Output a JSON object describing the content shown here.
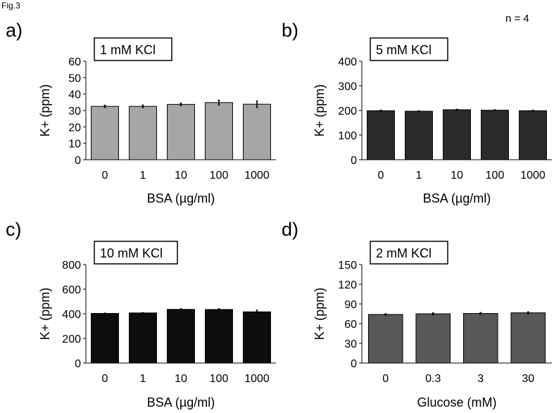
{
  "figure_label": "Fig.3",
  "n_label": "n = 4",
  "chart_data": [
    {
      "type": "bar",
      "panel_letter": "a)",
      "title": "1 mM KCl",
      "ylabel": "K+ (ppm)",
      "xlabel": "BSA (µg/ml)",
      "categories": [
        "0",
        "1",
        "10",
        "100",
        "1000"
      ],
      "values": [
        32.5,
        32.5,
        33.7,
        34.8,
        33.8
      ],
      "errors": [
        0.7,
        0.8,
        0.8,
        1.5,
        2.0
      ],
      "ylim": [
        0,
        60
      ],
      "yticks": [
        0,
        10,
        20,
        30,
        40,
        50,
        60
      ],
      "bar_color": "#a6a6a6",
      "grid": false
    },
    {
      "type": "bar",
      "panel_letter": "b)",
      "title": "5 mM KCl",
      "ylabel": "K+ (ppm)",
      "xlabel": "BSA (µg/ml)",
      "categories": [
        "0",
        "1",
        "10",
        "100",
        "1000"
      ],
      "values": [
        199,
        197,
        203,
        201,
        199
      ],
      "errors": [
        2,
        2,
        2,
        2,
        2
      ],
      "ylim": [
        0,
        400
      ],
      "yticks": [
        0,
        100,
        200,
        300,
        400
      ],
      "bar_color": "#2b2b2b",
      "grid": false
    },
    {
      "type": "bar",
      "panel_letter": "c)",
      "title": "10 mM KCl",
      "ylabel": "K+ (ppm)",
      "xlabel": "BSA (µg/ml)",
      "categories": [
        "0",
        "1",
        "10",
        "100",
        "1000"
      ],
      "values": [
        403,
        407,
        436,
        435,
        416
      ],
      "errors": [
        3,
        3,
        5,
        6,
        14
      ],
      "ylim": [
        0,
        800
      ],
      "yticks": [
        0,
        200,
        400,
        600,
        800
      ],
      "bar_color": "#0d0d0d",
      "grid": false
    },
    {
      "type": "bar",
      "panel_letter": "d)",
      "title": "2 mM KCl",
      "ylabel": "K+ (ppm)",
      "xlabel": "Glucose (mM)",
      "categories": [
        "0",
        "0.3",
        "3",
        "30"
      ],
      "values": [
        74,
        75,
        75.5,
        76.5
      ],
      "errors": [
        1,
        1.5,
        1.5,
        1.5
      ],
      "ylim": [
        0,
        150
      ],
      "yticks": [
        0,
        30,
        60,
        90,
        120,
        150
      ],
      "bar_color": "#595959",
      "grid": false
    }
  ]
}
